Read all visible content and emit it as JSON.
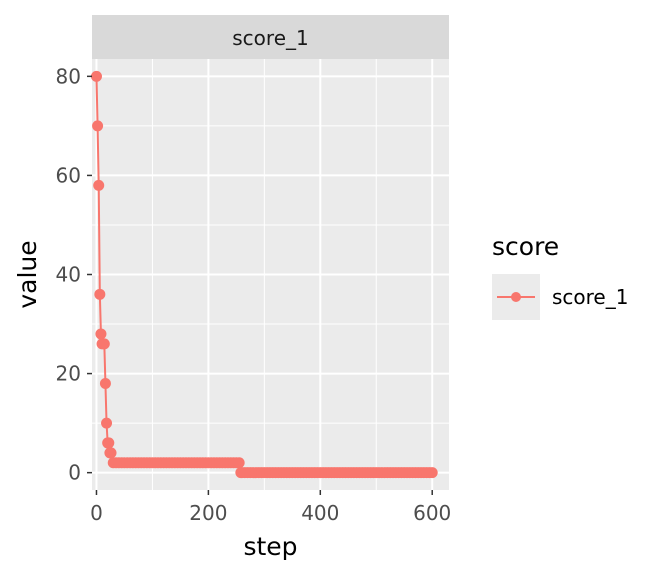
{
  "chart_data": {
    "type": "line",
    "facet_label": "score_1",
    "xlabel": "step",
    "ylabel": "value",
    "xlim": [
      -8,
      630
    ],
    "ylim": [
      -3.5,
      83.5
    ],
    "x_ticks": [
      0,
      200,
      400,
      600
    ],
    "y_ticks": [
      0,
      20,
      40,
      60,
      80
    ],
    "x_ticks_text": [
      "0",
      "200",
      "400",
      "600"
    ],
    "y_ticks_text": [
      "0",
      "20",
      "40",
      "60",
      "80"
    ],
    "grid": true,
    "legend": {
      "title": "score",
      "position": "right",
      "entries": [
        "score_1"
      ]
    },
    "series": [
      {
        "name": "score_1",
        "color": "#F8766D",
        "x": [
          0,
          2,
          4,
          6,
          8,
          10,
          14,
          16,
          18,
          20,
          22,
          24,
          26,
          30,
          35,
          40,
          45,
          50,
          55,
          60,
          65,
          70,
          75,
          80,
          85,
          90,
          95,
          100,
          105,
          110,
          115,
          120,
          125,
          130,
          135,
          140,
          145,
          150,
          155,
          160,
          165,
          170,
          175,
          180,
          185,
          190,
          195,
          200,
          205,
          210,
          215,
          220,
          225,
          230,
          235,
          240,
          245,
          250,
          255,
          258,
          260,
          265,
          270,
          275,
          280,
          285,
          290,
          295,
          300,
          305,
          310,
          315,
          320,
          325,
          330,
          335,
          340,
          345,
          350,
          355,
          360,
          365,
          370,
          375,
          380,
          385,
          390,
          395,
          400,
          405,
          410,
          415,
          420,
          425,
          430,
          435,
          440,
          445,
          450,
          455,
          460,
          465,
          470,
          475,
          480,
          485,
          490,
          495,
          500,
          505,
          510,
          515,
          520,
          525,
          530,
          535,
          540,
          545,
          550,
          555,
          560,
          565,
          570,
          575,
          580,
          585,
          590,
          595,
          600
        ],
        "y": [
          80,
          70,
          58,
          36,
          28,
          26,
          26,
          18,
          10,
          6,
          6,
          4,
          4,
          2,
          2,
          2,
          2,
          2,
          2,
          2,
          2,
          2,
          2,
          2,
          2,
          2,
          2,
          2,
          2,
          2,
          2,
          2,
          2,
          2,
          2,
          2,
          2,
          2,
          2,
          2,
          2,
          2,
          2,
          2,
          2,
          2,
          2,
          2,
          2,
          2,
          2,
          2,
          2,
          2,
          2,
          2,
          2,
          2,
          2,
          0,
          0,
          0,
          0,
          0,
          0,
          0,
          0,
          0,
          0,
          0,
          0,
          0,
          0,
          0,
          0,
          0,
          0,
          0,
          0,
          0,
          0,
          0,
          0,
          0,
          0,
          0,
          0,
          0,
          0,
          0,
          0,
          0,
          0,
          0,
          0,
          0,
          0,
          0,
          0,
          0,
          0,
          0,
          0,
          0,
          0,
          0,
          0,
          0,
          0,
          0,
          0,
          0,
          0,
          0,
          0,
          0,
          0,
          0,
          0,
          0,
          0,
          0,
          0,
          0,
          0,
          0,
          0,
          0,
          0
        ]
      }
    ]
  }
}
